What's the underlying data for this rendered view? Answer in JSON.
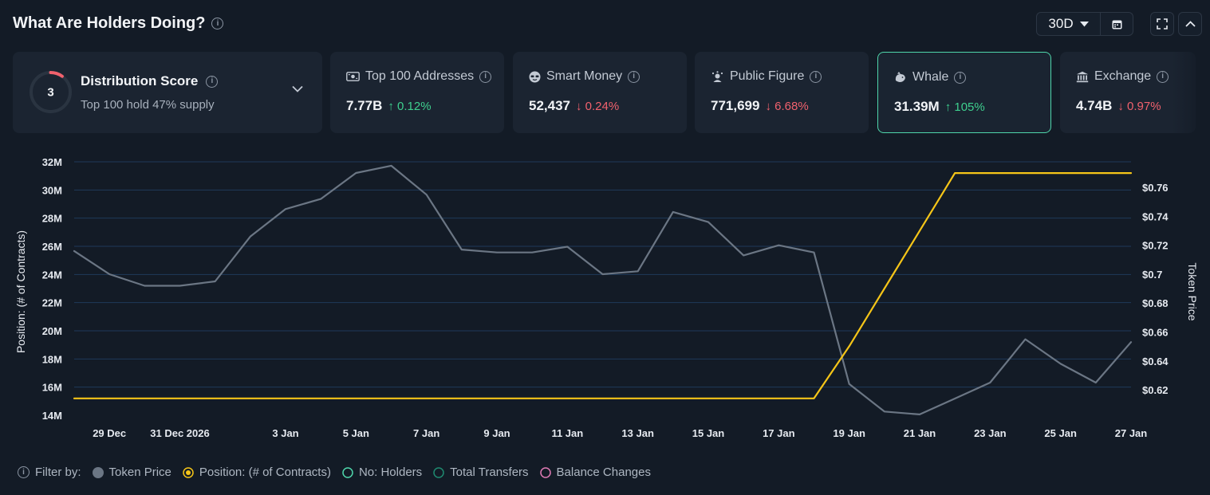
{
  "header": {
    "title": "What Are Holders Doing?",
    "range_label": "30D"
  },
  "distribution": {
    "score": "3",
    "score_fraction": 0.1,
    "title": "Distribution Score",
    "subtitle": "Top 100 hold 47% supply"
  },
  "cards": [
    {
      "label": "Top 100 Addresses",
      "value": "7.77B",
      "change": "↑ 0.12%",
      "dir": "up",
      "icon": "cash-icon"
    },
    {
      "label": "Smart Money",
      "value": "52,437",
      "change": "↓ 0.24%",
      "dir": "down",
      "icon": "smart-money-icon"
    },
    {
      "label": "Public Figure",
      "value": "771,699",
      "change": "↓ 6.68%",
      "dir": "down",
      "icon": "public-figure-icon"
    },
    {
      "label": "Whale",
      "value": "31.39M",
      "change": "↑ 105%",
      "dir": "up",
      "icon": "whale-icon"
    },
    {
      "label": "Exchange",
      "value": "4.74B",
      "change": "↓ 0.97%",
      "dir": "down",
      "icon": "bank-icon"
    }
  ],
  "legend": {
    "filter_label": "Filter by:",
    "items": [
      {
        "label": "Token Price",
        "color": "#6b7684",
        "style": "filled"
      },
      {
        "label": "Position: (# of Contracts)",
        "color": "#f5c518",
        "style": "ring-dot"
      },
      {
        "label": "No: Holders",
        "color": "#4fd6ab",
        "style": "ring"
      },
      {
        "label": "Total Transfers",
        "color": "#1f8a70",
        "style": "ring"
      },
      {
        "label": "Balance Changes",
        "color": "#e07bb5",
        "style": "ring"
      }
    ]
  },
  "colors": {
    "price_line": "#6b7684",
    "position_line": "#f5c518",
    "grid": "#1f3a5a",
    "accent": "#4fd6ab"
  },
  "chart_data": {
    "type": "line",
    "x_tick_labels": [
      "29 Dec",
      "31 Dec 2026",
      "3 Jan",
      "5 Jan",
      "7 Jan",
      "9 Jan",
      "11 Jan",
      "13 Jan",
      "15 Jan",
      "17 Jan",
      "19 Jan",
      "21 Jan",
      "23 Jan",
      "25 Jan",
      "27 Jan"
    ],
    "x": [
      "28 Dec",
      "29 Dec",
      "30 Dec",
      "31 Dec",
      "1 Jan",
      "2 Jan",
      "3 Jan",
      "4 Jan",
      "5 Jan",
      "6 Jan",
      "7 Jan",
      "8 Jan",
      "9 Jan",
      "10 Jan",
      "11 Jan",
      "12 Jan",
      "13 Jan",
      "14 Jan",
      "15 Jan",
      "16 Jan",
      "17 Jan",
      "18 Jan",
      "19 Jan",
      "20 Jan",
      "21 Jan",
      "22 Jan",
      "23 Jan",
      "24 Jan",
      "25 Jan",
      "26 Jan",
      "27 Jan"
    ],
    "series": [
      {
        "name": "Token Price",
        "axis": "right",
        "values": [
          0.716,
          0.7,
          0.692,
          0.692,
          0.695,
          0.726,
          0.745,
          0.752,
          0.77,
          0.775,
          0.755,
          0.717,
          0.715,
          0.715,
          0.719,
          0.7,
          0.702,
          0.743,
          0.736,
          0.713,
          0.72,
          0.715,
          0.624,
          0.605,
          0.603,
          0.614,
          0.625,
          0.655,
          0.638,
          0.625,
          0.653
        ]
      },
      {
        "name": "Position: (# of Contracts)",
        "axis": "left",
        "values": [
          15.2,
          15.2,
          15.2,
          15.2,
          15.2,
          15.2,
          15.2,
          15.2,
          15.2,
          15.2,
          15.2,
          15.2,
          15.2,
          15.2,
          15.2,
          15.2,
          15.2,
          15.2,
          15.2,
          15.2,
          15.2,
          15.2,
          18.9,
          23.0,
          27.1,
          31.2,
          31.2,
          31.2,
          31.2,
          31.2,
          31.2
        ]
      }
    ],
    "left_axis": {
      "label": "Position: (# of Contracts)",
      "ticks": [
        "14M",
        "16M",
        "18M",
        "20M",
        "22M",
        "24M",
        "26M",
        "28M",
        "30M",
        "32M"
      ],
      "tick_values": [
        14,
        16,
        18,
        20,
        22,
        24,
        26,
        28,
        30,
        32
      ],
      "ylim": [
        14,
        32
      ]
    },
    "right_axis": {
      "label": "Token Price",
      "ticks": [
        "$0.62",
        "$0.64",
        "$0.66",
        "$0.68",
        "$0.7",
        "$0.72",
        "$0.74",
        "$0.76"
      ],
      "tick_values": [
        0.62,
        0.64,
        0.66,
        0.68,
        0.7,
        0.72,
        0.74,
        0.76
      ],
      "ylim": [
        0.6024,
        0.7777
      ]
    },
    "grid": true
  }
}
